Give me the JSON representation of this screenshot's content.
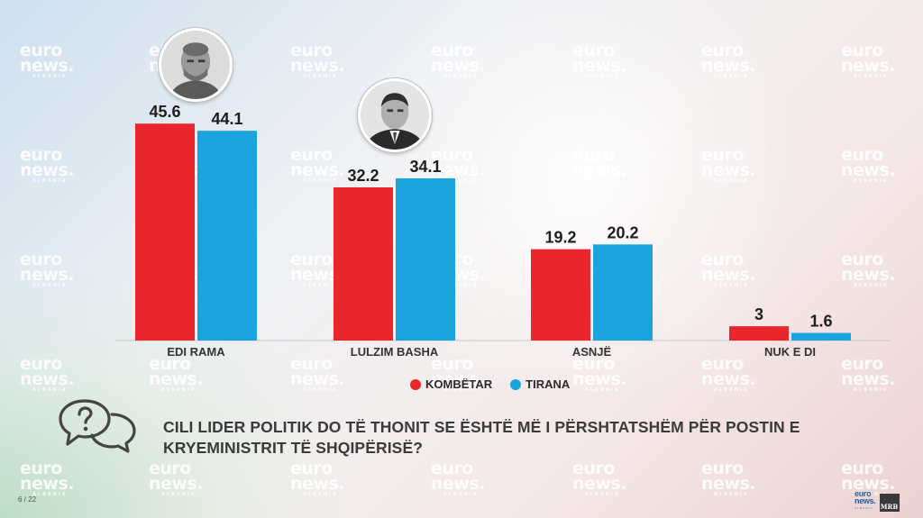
{
  "chart_data": {
    "type": "bar",
    "categories": [
      "EDI RAMA",
      "LULZIM BASHA",
      "ASNJË",
      "NUK E DI"
    ],
    "series": [
      {
        "name": "KOMBËTAR",
        "color": "#e8262b",
        "values": [
          45.6,
          32.2,
          19.2,
          3
        ],
        "labels": [
          "45.6",
          "32.2",
          "19.2",
          "3"
        ]
      },
      {
        "name": "TIRANA",
        "color": "#1aa3dc",
        "values": [
          44.1,
          34.1,
          20.2,
          1.6
        ],
        "labels": [
          "44.1",
          "34.1",
          "20.2",
          "1.6"
        ]
      }
    ],
    "ylim": [
      0,
      50
    ],
    "grid": false,
    "legend_position": "bottom-center"
  },
  "question": "CILI LIDER POLITIK DO TË THONIT SE ËSHTË MË I PËRSHTATSHËM PËR POSTIN E KRYEMINISTRIT TË SHQIPËRISË?",
  "page_number": "6 / 22",
  "watermark": {
    "line1": "euro",
    "line2": "news.",
    "line3": "ALBANIA"
  },
  "brand": {
    "logo_line1": "euro",
    "logo_line2": "news.",
    "logo_line3": "ALBANIA",
    "partner": "MRB"
  },
  "icons": {
    "question": "question-chat-icon"
  }
}
